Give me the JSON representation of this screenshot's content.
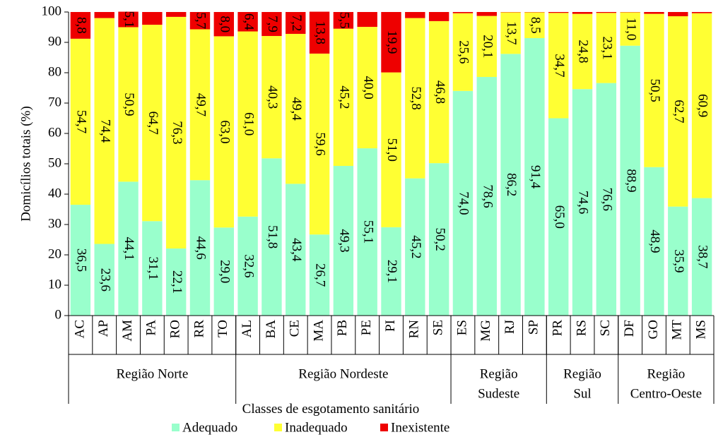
{
  "chart_data": {
    "type": "stacked_bar",
    "y_label": "Domicílios totais (%)",
    "x_label": "Classes de esgotamento sanitário",
    "categories": [
      "AC",
      "AP",
      "AM",
      "PA",
      "RO",
      "RR",
      "TO",
      "AL",
      "BA",
      "CE",
      "MA",
      "PB",
      "PE",
      "PI",
      "RN",
      "SE",
      "ES",
      "MG",
      "RJ",
      "SP",
      "PR",
      "RS",
      "SC",
      "DF",
      "GO",
      "MT",
      "MS"
    ],
    "groups": [
      {
        "label": [
          "Região Norte"
        ],
        "span": 7
      },
      {
        "label": [
          "Região Nordeste"
        ],
        "span": 9
      },
      {
        "label": [
          "Região",
          "Sudeste"
        ],
        "span": 4
      },
      {
        "label": [
          "Região",
          "Sul"
        ],
        "span": 3
      },
      {
        "label": [
          "Região",
          "Centro-Oeste"
        ],
        "span": 4
      }
    ],
    "series": [
      {
        "name": "Adequado",
        "color": "#99ffcc",
        "values": [
          36.5,
          23.6,
          44.1,
          31.1,
          22.1,
          44.6,
          29.0,
          32.6,
          51.8,
          43.4,
          26.7,
          49.3,
          55.1,
          29.1,
          45.2,
          50.2,
          74.0,
          78.6,
          86.2,
          91.4,
          65.0,
          74.6,
          76.6,
          88.9,
          48.9,
          35.9,
          38.7
        ],
        "value_labels": [
          "36,5",
          "23,6",
          "44,1",
          "31,1",
          "22,1",
          "44,6",
          "29,0",
          "32,6",
          "51,8",
          "43,4",
          "26,7",
          "49,3",
          "55,1",
          "29,1",
          "45,2",
          "50,2",
          "74,0",
          "78,6",
          "86,2",
          "91,4",
          "65,0",
          "74,6",
          "76,6",
          "88,9",
          "48,9",
          "35,9",
          "38,7"
        ]
      },
      {
        "name": "Inadequado",
        "color": "#ffff33",
        "values": [
          54.7,
          74.4,
          50.9,
          64.7,
          76.3,
          49.7,
          63.0,
          61.0,
          40.3,
          49.4,
          59.6,
          45.2,
          40.0,
          51.0,
          52.8,
          46.8,
          25.6,
          20.1,
          13.7,
          8.5,
          34.7,
          24.8,
          23.1,
          11.0,
          50.5,
          62.7,
          60.9
        ],
        "value_labels": [
          "54,7",
          "74,4",
          "50,9",
          "64,7",
          "76,3",
          "49,7",
          "63,0",
          "61,0",
          "40,3",
          "49,4",
          "59,6",
          "45,2",
          "40,0",
          "51,0",
          "52,8",
          "46,8",
          "25,6",
          "20,1",
          "13,7",
          "8,5",
          "34,7",
          "24,8",
          "23,1",
          "11,0",
          "50,5",
          "62,7",
          "60,9"
        ]
      },
      {
        "name": "Inexistente",
        "color": "#ee0000",
        "values": [
          8.8,
          2.0,
          5.1,
          4.2,
          1.6,
          5.7,
          8.0,
          6.4,
          7.9,
          7.2,
          13.8,
          5.5,
          4.9,
          19.9,
          2.0,
          3.0,
          0.4,
          1.3,
          0.1,
          0.1,
          0.3,
          0.6,
          0.3,
          0.1,
          0.6,
          1.4,
          0.4
        ],
        "value_labels": [
          "8,8",
          null,
          "5,1",
          null,
          null,
          "5,7",
          "8,0",
          "6,4",
          "7,9",
          "7,2",
          "13,8",
          "5,5",
          null,
          "19,9",
          null,
          null,
          null,
          null,
          null,
          null,
          null,
          null,
          null,
          null,
          null,
          null,
          null
        ]
      }
    ],
    "ylim": [
      0,
      100
    ],
    "yticks": [
      0,
      10,
      20,
      30,
      40,
      50,
      60,
      70,
      80,
      90,
      100
    ]
  }
}
